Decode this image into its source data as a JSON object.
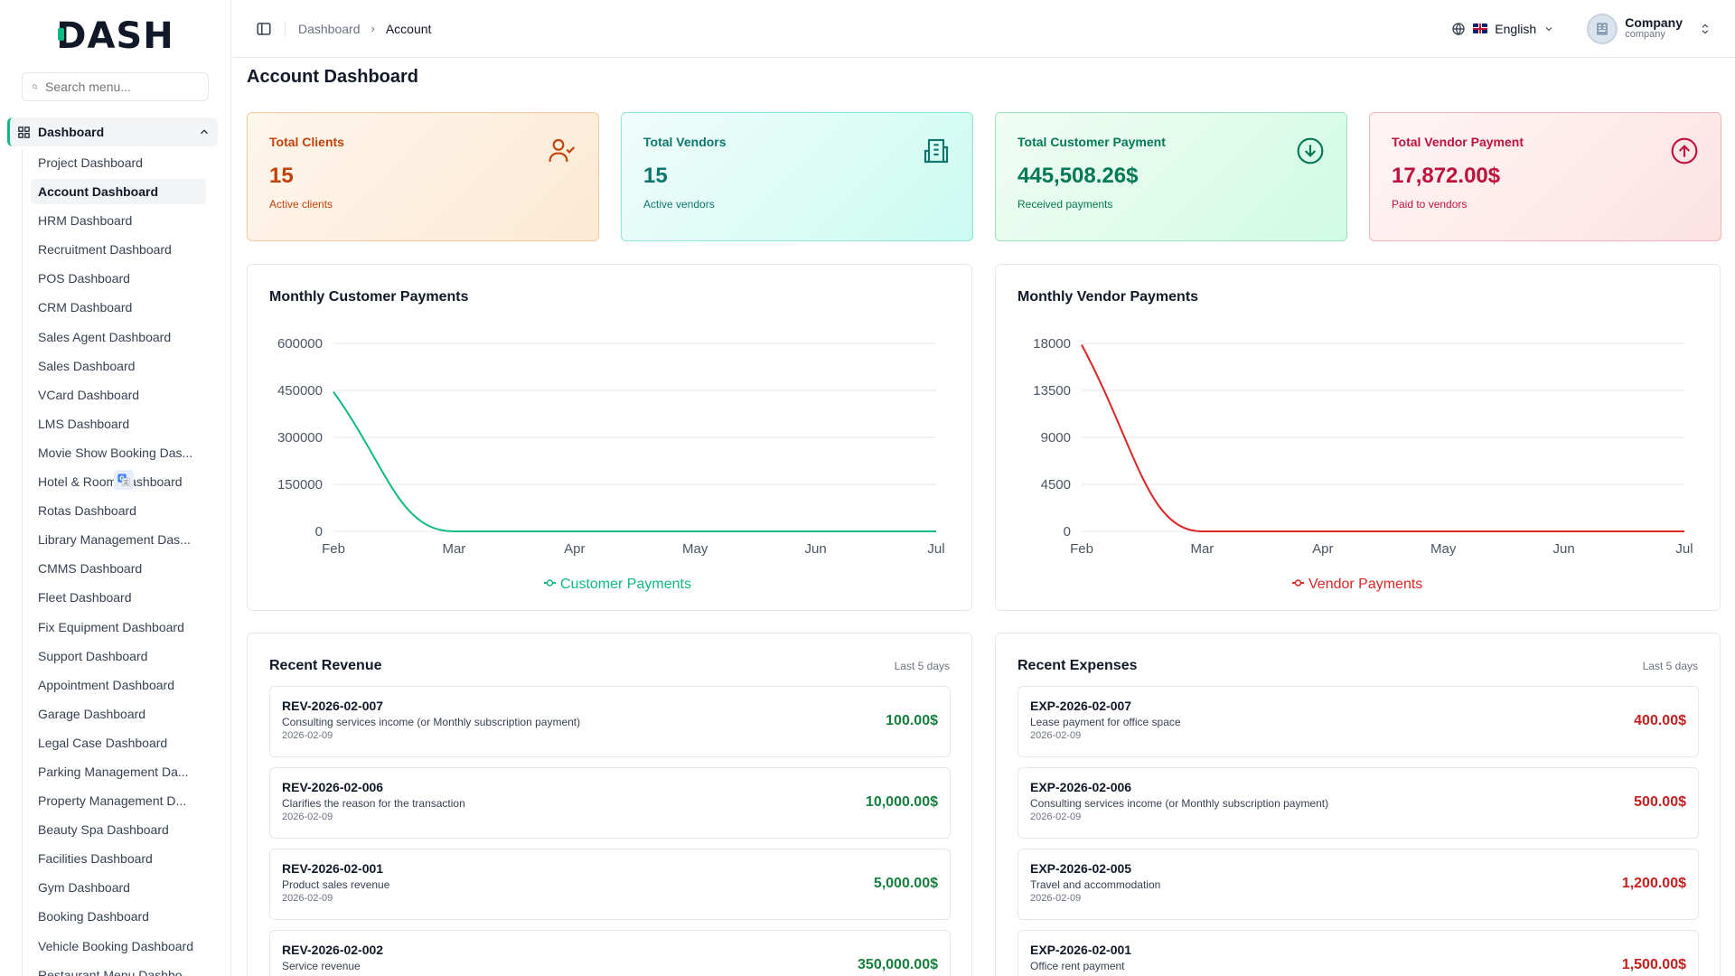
{
  "app": {
    "logo": "DASH"
  },
  "sidebar": {
    "search_placeholder": "Search menu...",
    "group_label": "Dashboard",
    "items": [
      {
        "label": "Project Dashboard",
        "active": false
      },
      {
        "label": "Account Dashboard",
        "active": true
      },
      {
        "label": "HRM Dashboard",
        "active": false
      },
      {
        "label": "Recruitment Dashboard",
        "active": false
      },
      {
        "label": "POS Dashboard",
        "active": false
      },
      {
        "label": "CRM Dashboard",
        "active": false
      },
      {
        "label": "Sales Agent Dashboard",
        "active": false
      },
      {
        "label": "Sales Dashboard",
        "active": false
      },
      {
        "label": "VCard Dashboard",
        "active": false
      },
      {
        "label": "LMS Dashboard",
        "active": false
      },
      {
        "label": "Movie Show Booking Das...",
        "active": false
      },
      {
        "label": "Hotel & Room Dashboard",
        "active": false
      },
      {
        "label": "Rotas Dashboard",
        "active": false
      },
      {
        "label": "Library Management Das...",
        "active": false
      },
      {
        "label": "CMMS Dashboard",
        "active": false
      },
      {
        "label": "Fleet Dashboard",
        "active": false
      },
      {
        "label": "Fix Equipment Dashboard",
        "active": false
      },
      {
        "label": "Support Dashboard",
        "active": false
      },
      {
        "label": "Appointment Dashboard",
        "active": false
      },
      {
        "label": "Garage Dashboard",
        "active": false
      },
      {
        "label": "Legal Case Dashboard",
        "active": false
      },
      {
        "label": "Parking Management Da...",
        "active": false
      },
      {
        "label": "Property Management D...",
        "active": false
      },
      {
        "label": "Beauty Spa Dashboard",
        "active": false
      },
      {
        "label": "Facilities Dashboard",
        "active": false
      },
      {
        "label": "Gym Dashboard",
        "active": false
      },
      {
        "label": "Booking Dashboard",
        "active": false
      },
      {
        "label": "Vehicle Booking Dashboard",
        "active": false
      },
      {
        "label": "Restaurant Menu Dashbo...",
        "active": false
      }
    ]
  },
  "header": {
    "breadcrumb": [
      "Dashboard",
      "Account"
    ],
    "language": "English",
    "company_name": "Company",
    "company_role": "company"
  },
  "page": {
    "title": "Account Dashboard"
  },
  "stats": [
    {
      "label": "Total Clients",
      "value": "15",
      "sub": "Active clients",
      "icon": "user-check-icon"
    },
    {
      "label": "Total Vendors",
      "value": "15",
      "sub": "Active vendors",
      "icon": "building-icon"
    },
    {
      "label": "Total Customer Payment",
      "value": "445,508.26$",
      "sub": "Received payments",
      "icon": "arrow-down-circle-icon"
    },
    {
      "label": "Total Vendor Payment",
      "value": "17,872.00$",
      "sub": "Paid to vendors",
      "icon": "arrow-up-circle-icon"
    }
  ],
  "chart_data": [
    {
      "type": "line",
      "title": "Monthly Customer Payments",
      "x": [
        "Feb",
        "Mar",
        "Apr",
        "May",
        "Jun",
        "Jul"
      ],
      "series": [
        {
          "name": "Customer Payments",
          "values": [
            445508.26,
            0,
            0,
            0,
            0,
            0
          ],
          "color": "#10b981"
        }
      ],
      "yticks": [
        "600000",
        "450000",
        "300000",
        "150000",
        "0"
      ],
      "ylim": [
        0,
        600000
      ],
      "grid": true,
      "legend": "bottom"
    },
    {
      "type": "line",
      "title": "Monthly Vendor Payments",
      "x": [
        "Feb",
        "Mar",
        "Apr",
        "May",
        "Jun",
        "Jul"
      ],
      "series": [
        {
          "name": "Vendor Payments",
          "values": [
            17872,
            0,
            0,
            0,
            0,
            0
          ],
          "color": "#dc2626"
        }
      ],
      "yticks": [
        "18000",
        "13500",
        "9000",
        "4500",
        "0"
      ],
      "ylim": [
        0,
        18000
      ],
      "grid": true,
      "legend": "bottom"
    }
  ],
  "revenue": {
    "title": "Recent Revenue",
    "note": "Last 5 days",
    "items": [
      {
        "ref": "REV-2026-02-007",
        "desc": "Consulting services income (or Monthly subscription payment)",
        "date": "2026-02-09",
        "amount": "100.00$"
      },
      {
        "ref": "REV-2026-02-006",
        "desc": "Clarifies the reason for the transaction",
        "date": "2026-02-09",
        "amount": "10,000.00$"
      },
      {
        "ref": "REV-2026-02-001",
        "desc": "Product sales revenue",
        "date": "2026-02-09",
        "amount": "5,000.00$"
      },
      {
        "ref": "REV-2026-02-002",
        "desc": "Service revenue",
        "date": "",
        "amount": "350,000.00$"
      }
    ]
  },
  "expenses": {
    "title": "Recent Expenses",
    "note": "Last 5 days",
    "items": [
      {
        "ref": "EXP-2026-02-007",
        "desc": "Lease payment for office space",
        "date": "2026-02-09",
        "amount": "400.00$"
      },
      {
        "ref": "EXP-2026-02-006",
        "desc": "Consulting services income (or Monthly subscription payment)",
        "date": "2026-02-09",
        "amount": "500.00$"
      },
      {
        "ref": "EXP-2026-02-005",
        "desc": "Travel and accommodation",
        "date": "2026-02-09",
        "amount": "1,200.00$"
      },
      {
        "ref": "EXP-2026-02-001",
        "desc": "Office rent payment",
        "date": "",
        "amount": "1,500.00$"
      }
    ]
  }
}
